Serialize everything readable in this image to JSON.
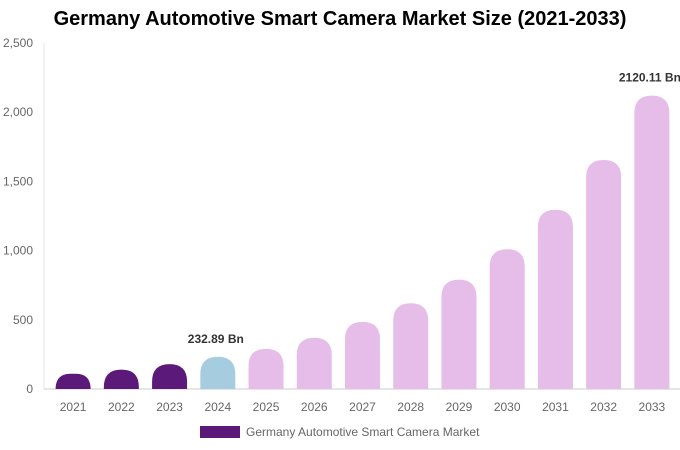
{
  "chart_data": {
    "type": "bar",
    "title": "Germany Automotive Smart Camera Market Size (2021-2033)",
    "categories": [
      "2021",
      "2022",
      "2023",
      "2024",
      "2025",
      "2026",
      "2027",
      "2028",
      "2029",
      "2030",
      "2031",
      "2032",
      "2033"
    ],
    "series": [
      {
        "name": "Germany Automotive Smart Camera Market",
        "values": [
          110,
          140,
          180,
          232.89,
          290,
          370,
          485,
          620,
          790,
          1010,
          1295,
          1655,
          2120.11
        ]
      }
    ],
    "ylim": [
      0,
      2500
    ],
    "yticks": [
      0,
      500,
      1000,
      1500,
      2000,
      2500
    ],
    "ytick_labels": [
      "0",
      "500",
      "1,000",
      "1,500",
      "2,000",
      "2,500"
    ],
    "data_labels": [
      {
        "index": 3,
        "text": "232.89 Bn"
      },
      {
        "index": 12,
        "text": "2120.11 Bn"
      }
    ],
    "bar_colors": [
      "#5b1a7a",
      "#5b1a7a",
      "#5b1a7a",
      "#a6cce0",
      "#e6bce8",
      "#e6bce8",
      "#e6bce8",
      "#e6bce8",
      "#e6bce8",
      "#e6bce8",
      "#e6bce8",
      "#e6bce8",
      "#e6bce8"
    ],
    "legend_color": "#5b1a7a",
    "legend_position": "bottom",
    "grid": false
  }
}
